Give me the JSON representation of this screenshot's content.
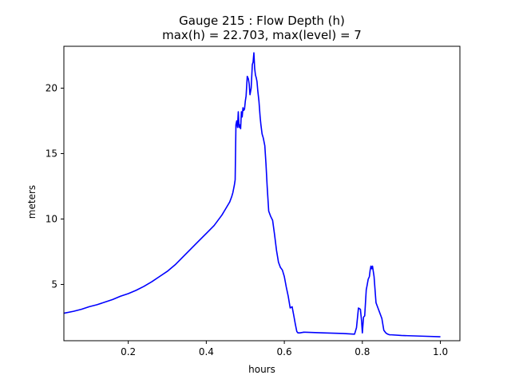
{
  "chart_data": {
    "type": "line",
    "title_line1": "Gauge 215 : Flow Depth (h)",
    "title_line2": "max(h) =  22.703,    max(level) = 7",
    "xlabel": "hours",
    "ylabel": "meters",
    "xlim": [
      0.035,
      1.05
    ],
    "ylim": [
      0.7,
      23.2
    ],
    "xticks": [
      0.2,
      0.4,
      0.6,
      0.8,
      1.0
    ],
    "xtick_labels": [
      "0.2",
      "0.4",
      "0.6",
      "0.8",
      "1.0"
    ],
    "yticks": [
      5,
      10,
      15,
      20
    ],
    "ytick_labels": [
      "5",
      "10",
      "15",
      "20"
    ],
    "grid": false,
    "series": [
      {
        "color": "#0000ff",
        "x": [
          0.035,
          0.06,
          0.08,
          0.1,
          0.12,
          0.14,
          0.16,
          0.18,
          0.2,
          0.22,
          0.24,
          0.26,
          0.28,
          0.3,
          0.32,
          0.34,
          0.36,
          0.38,
          0.39,
          0.4,
          0.42,
          0.44,
          0.45,
          0.46,
          0.465,
          0.468,
          0.47,
          0.472,
          0.474,
          0.476,
          0.478,
          0.48,
          0.482,
          0.484,
          0.486,
          0.488,
          0.49,
          0.492,
          0.494,
          0.496,
          0.498,
          0.5,
          0.502,
          0.505,
          0.508,
          0.51,
          0.512,
          0.515,
          0.518,
          0.52,
          0.522,
          0.524,
          0.526,
          0.528,
          0.53,
          0.532,
          0.535,
          0.538,
          0.54,
          0.543,
          0.546,
          0.55,
          0.553,
          0.556,
          0.56,
          0.565,
          0.57,
          0.575,
          0.58,
          0.585,
          0.59,
          0.595,
          0.6,
          0.605,
          0.61,
          0.615,
          0.62,
          0.625,
          0.628,
          0.632,
          0.635,
          0.64,
          0.65,
          0.7,
          0.75,
          0.78,
          0.785,
          0.79,
          0.795,
          0.798,
          0.8,
          0.803,
          0.806,
          0.81,
          0.812,
          0.815,
          0.818,
          0.82,
          0.822,
          0.824,
          0.826,
          0.828,
          0.83,
          0.835,
          0.84,
          0.845,
          0.85,
          0.855,
          0.86,
          0.865,
          0.87,
          0.875,
          0.9,
          0.95,
          1.0
        ],
        "y": [
          2.8,
          2.95,
          3.1,
          3.3,
          3.45,
          3.65,
          3.85,
          4.1,
          4.3,
          4.55,
          4.85,
          5.2,
          5.6,
          6.0,
          6.5,
          7.1,
          7.7,
          8.3,
          8.6,
          8.9,
          9.5,
          10.3,
          10.8,
          11.3,
          11.7,
          12.0,
          12.3,
          12.6,
          13.0,
          17.2,
          17.5,
          17.0,
          18.2,
          17.0,
          17.2,
          16.9,
          18.2,
          17.8,
          18.5,
          18.3,
          18.4,
          19.0,
          19.4,
          20.9,
          20.7,
          20.3,
          19.5,
          20.0,
          21.8,
          22.0,
          22.703,
          21.5,
          21.0,
          20.8,
          20.5,
          19.8,
          19.0,
          17.8,
          17.2,
          16.5,
          16.2,
          15.6,
          14.2,
          12.5,
          10.6,
          10.2,
          9.9,
          8.8,
          7.6,
          6.7,
          6.3,
          6.1,
          5.6,
          4.8,
          4.1,
          3.2,
          3.3,
          2.5,
          2.0,
          1.4,
          1.3,
          1.3,
          1.35,
          1.3,
          1.25,
          1.2,
          1.7,
          3.2,
          3.1,
          2.2,
          1.3,
          2.5,
          2.6,
          4.6,
          4.9,
          5.4,
          5.6,
          6.1,
          6.4,
          6.2,
          6.4,
          6.0,
          5.6,
          3.6,
          3.2,
          2.8,
          2.4,
          1.5,
          1.3,
          1.2,
          1.15,
          1.15,
          1.1,
          1.05,
          1.0
        ]
      }
    ]
  }
}
